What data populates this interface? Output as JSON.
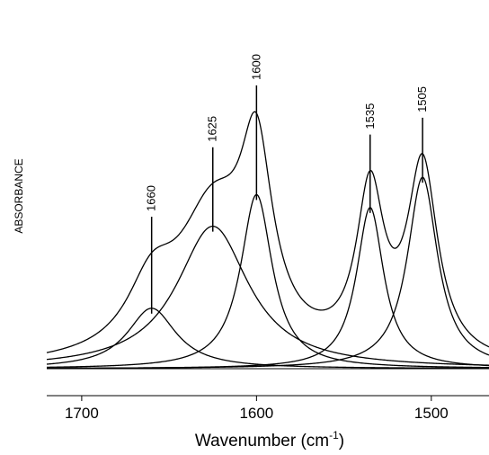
{
  "chart_data": {
    "type": "line",
    "title": "",
    "xlabel": "Wavenumber (cm",
    "xlabel_superscript": "-1",
    "xlabel_close": ")",
    "ylabel": "ABSORBANCE",
    "x_reversed": true,
    "xlim": [
      1720,
      1467
    ],
    "ylim": [
      0,
      1.0
    ],
    "x_ticks": [
      1700,
      1600,
      1500
    ],
    "grid": false,
    "legend": "none",
    "components": [
      {
        "center": 1660,
        "height": 0.21,
        "fwhm": 34
      },
      {
        "center": 1625,
        "height": 0.495,
        "fwhm": 50
      },
      {
        "center": 1600,
        "height": 0.605,
        "fwhm": 22
      },
      {
        "center": 1535,
        "height": 0.56,
        "fwhm": 19
      },
      {
        "center": 1505,
        "height": 0.665,
        "fwhm": 21
      }
    ],
    "peak_labels": [
      "1660",
      "1625",
      "1600",
      "1535",
      "1505"
    ],
    "envelope": "sum of components",
    "baseline": 0.0
  }
}
